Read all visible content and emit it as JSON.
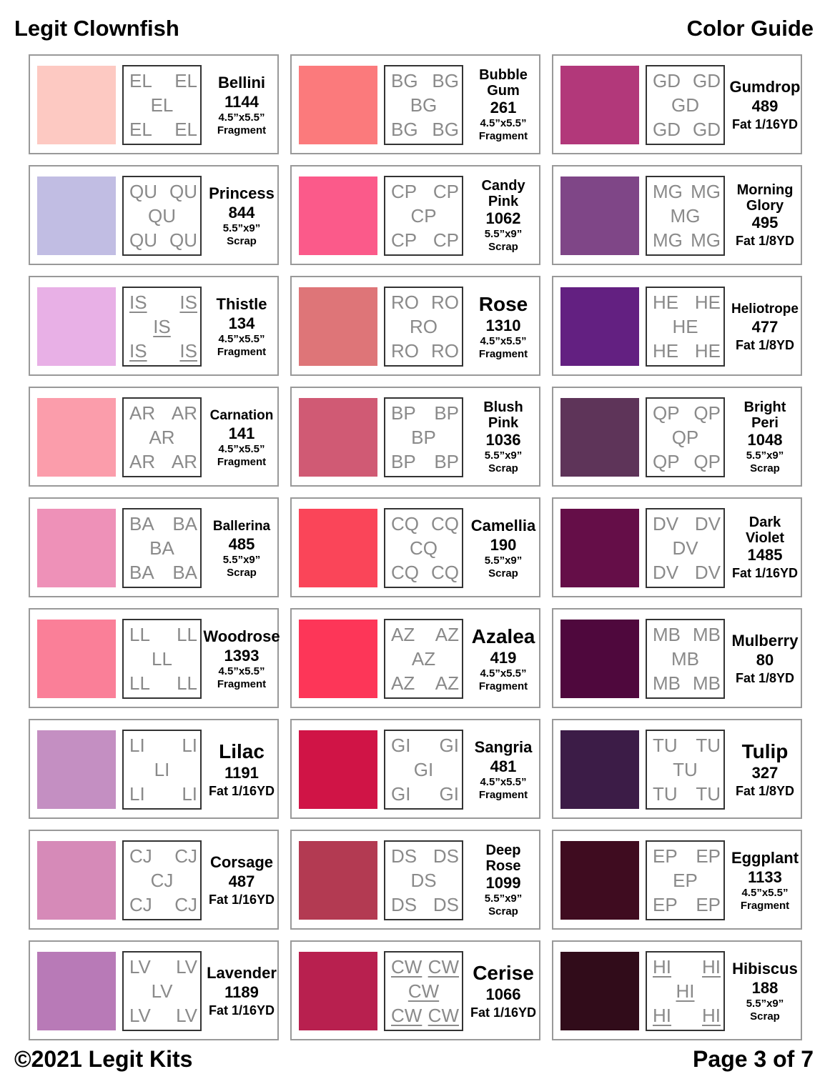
{
  "header": {
    "title": "Legit Clownfish",
    "subtitle": "Color Guide"
  },
  "footer": {
    "copyright": "©2021 Legit Kits",
    "page": "Page 3 of 7"
  },
  "columns": [
    [
      {
        "code": "EL",
        "name": "Bellini",
        "number": "1144",
        "size": "4.5”x5.5”",
        "type": "Fragment",
        "color": "#fdc9c2"
      },
      {
        "code": "QU",
        "name": "Princess",
        "number": "844",
        "size": "5.5”x9”",
        "type": "Scrap",
        "color": "#c1bde3"
      },
      {
        "code": "IS",
        "underline": true,
        "name": "Thistle",
        "number": "134",
        "size": "4.5”x5.5”",
        "type": "Fragment",
        "color": "#e8b0e6"
      },
      {
        "code": "AR",
        "name": "Carnation",
        "number": "141",
        "size": "4.5”x5.5”",
        "type": "Fragment",
        "color": "#fb9dab"
      },
      {
        "code": "BA",
        "name": "Ballerina",
        "number": "485",
        "size": "5.5”x9”",
        "type": "Scrap",
        "color": "#ee91b8"
      },
      {
        "code": "LL",
        "name": "Woodrose",
        "number": "1393",
        "size": "4.5”x5.5”",
        "type": "Fragment",
        "color": "#fa7f98"
      },
      {
        "code": "LI",
        "name": "Lilac",
        "number": "1191",
        "size": "",
        "type": "Fat 1/16YD",
        "color": "#c48fc2"
      },
      {
        "code": "CJ",
        "name": "Corsage",
        "number": "487",
        "size": "",
        "type": "Fat 1/16YD",
        "color": "#d68ab8"
      },
      {
        "code": "LV",
        "name": "Lavender",
        "number": "1189",
        "size": "",
        "type": "Fat 1/16YD",
        "color": "#b87ab7"
      }
    ],
    [
      {
        "code": "BG",
        "name": "Bubble\nGum",
        "number": "261",
        "size": "4.5”x5.5”",
        "type": "Fragment",
        "color": "#fb7a7c"
      },
      {
        "code": "CP",
        "name": "Candy\nPink",
        "number": "1062",
        "size": "5.5”x9”",
        "type": "Scrap",
        "color": "#fb5a8a"
      },
      {
        "code": "RO",
        "name": "Rose",
        "number": "1310",
        "size": "4.5”x5.5”",
        "type": "Fragment",
        "color": "#de7578"
      },
      {
        "code": "BP",
        "name": "Blush\nPink",
        "number": "1036",
        "size": "5.5”x9”",
        "type": "Scrap",
        "color": "#d05a74"
      },
      {
        "code": "CQ",
        "name": "Camellia",
        "number": "190",
        "size": "5.5”x9”",
        "type": "Scrap",
        "color": "#fa4559"
      },
      {
        "code": "AZ",
        "name": "Azalea",
        "number": "419",
        "size": "4.5”x5.5”",
        "type": "Fragment",
        "color": "#fd3658"
      },
      {
        "code": "GI",
        "name": "Sangria",
        "number": "481",
        "size": "4.5”x5.5”",
        "type": "Fragment",
        "color": "#d01446"
      },
      {
        "code": "DS",
        "name": "Deep\nRose",
        "number": "1099",
        "size": "5.5”x9”",
        "type": "Scrap",
        "color": "#b33a52"
      },
      {
        "code": "CW",
        "underline": true,
        "name": "Cerise",
        "number": "1066",
        "size": "",
        "type": "Fat 1/16YD",
        "color": "#b8204f"
      }
    ],
    [
      {
        "code": "GD",
        "name": "Gumdrop",
        "number": "489",
        "size": "",
        "type": "Fat 1/16YD",
        "color": "#b2387a"
      },
      {
        "code": "MG",
        "name": "Morning\nGlory",
        "number": "495",
        "size": "",
        "type": "Fat 1/8YD",
        "color": "#7f4687"
      },
      {
        "code": "HE",
        "name": "Heliotrope",
        "number": "477",
        "size": "",
        "type": "Fat 1/8YD",
        "color": "#632081"
      },
      {
        "code": "QP",
        "name": "Bright\nPeri",
        "number": "1048",
        "size": "5.5”x9”",
        "type": "Scrap",
        "color": "#5e3459"
      },
      {
        "code": "DV",
        "name": "Dark\nViolet",
        "number": "1485",
        "size": "",
        "type": "Fat 1/16YD",
        "color": "#650e48"
      },
      {
        "code": "MB",
        "name": "Mulberry",
        "number": "80",
        "size": "",
        "type": "Fat 1/8YD",
        "color": "#4f083d"
      },
      {
        "code": "TU",
        "name": "Tulip",
        "number": "327",
        "size": "",
        "type": "Fat 1/8YD",
        "color": "#3c1c47"
      },
      {
        "code": "EP",
        "name": "Eggplant",
        "number": "1133",
        "size": "4.5”x5.5”",
        "type": "Fragment",
        "color": "#3f0c20"
      },
      {
        "code": "HI",
        "underline": true,
        "name": "Hibiscus",
        "number": "188",
        "size": "5.5”x9”",
        "type": "Scrap",
        "color": "#310c1a"
      }
    ]
  ]
}
